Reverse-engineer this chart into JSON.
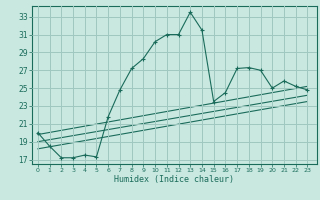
{
  "title": "",
  "xlabel": "Humidex (Indice chaleur)",
  "ylabel": "",
  "bg_color": "#c8e8e0",
  "grid_color": "#a0c8c0",
  "line_color": "#1a6b5a",
  "xlim": [
    -0.5,
    23.8
  ],
  "ylim": [
    16.5,
    34.2
  ],
  "xticks": [
    0,
    1,
    2,
    3,
    4,
    5,
    6,
    7,
    8,
    9,
    10,
    11,
    12,
    13,
    14,
    15,
    16,
    17,
    18,
    19,
    20,
    21,
    22,
    23
  ],
  "yticks": [
    17,
    19,
    21,
    23,
    25,
    27,
    29,
    31,
    33
  ],
  "main_series": [
    [
      0,
      20.0
    ],
    [
      1,
      18.5
    ],
    [
      2,
      17.2
    ],
    [
      3,
      17.2
    ],
    [
      4,
      17.5
    ],
    [
      5,
      17.3
    ],
    [
      6,
      21.8
    ],
    [
      7,
      24.8
    ],
    [
      8,
      27.2
    ],
    [
      9,
      28.3
    ],
    [
      10,
      30.2
    ],
    [
      11,
      31.0
    ],
    [
      12,
      31.0
    ],
    [
      13,
      33.5
    ],
    [
      14,
      31.5
    ],
    [
      15,
      23.5
    ],
    [
      16,
      24.5
    ],
    [
      17,
      27.2
    ],
    [
      18,
      27.3
    ],
    [
      19,
      27.0
    ],
    [
      20,
      25.0
    ],
    [
      21,
      25.8
    ],
    [
      22,
      25.2
    ],
    [
      23,
      24.8
    ]
  ],
  "regression_lines": [
    [
      [
        0,
        19.8
      ],
      [
        23,
        25.2
      ]
    ],
    [
      [
        0,
        19.0
      ],
      [
        23,
        24.2
      ]
    ],
    [
      [
        0,
        18.2
      ],
      [
        23,
        23.5
      ]
    ]
  ]
}
